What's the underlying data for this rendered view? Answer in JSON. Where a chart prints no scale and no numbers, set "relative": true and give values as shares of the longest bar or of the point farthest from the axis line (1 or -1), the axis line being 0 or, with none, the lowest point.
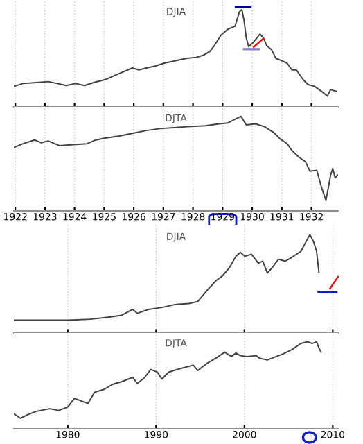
{
  "chart_data": [
    {
      "type": "line",
      "title": "DJIA",
      "relative": true,
      "tick_labels": false,
      "grid": "x",
      "xlim": [
        1921.95,
        1932.9
      ],
      "xticks": [
        1922,
        1923,
        1924,
        1925,
        1926,
        1927,
        1928,
        1929,
        1930,
        1931,
        1932
      ],
      "series": [
        {
          "color": "#404040",
          "x": [
            1921.95,
            1922.26,
            1922.72,
            1923.11,
            1923.42,
            1923.72,
            1924.03,
            1924.34,
            1924.65,
            1925.03,
            1925.49,
            1925.95,
            1926.18,
            1926.42,
            1926.72,
            1927.03,
            1927.49,
            1927.8,
            1928.11,
            1928.34,
            1928.57,
            1928.72,
            1928.95,
            1929.18,
            1929.42,
            1929.57,
            1929.65,
            1929.72,
            1929.8,
            1929.88,
            1930.03,
            1930.26,
            1930.38,
            1930.49,
            1930.65,
            1930.8,
            1931.03,
            1931.18,
            1931.34,
            1931.49,
            1931.72,
            1931.88,
            1932.11,
            1932.34,
            1932.54,
            1932.65,
            1932.72,
            1932.85
          ],
          "values": [
            0.21,
            0.24,
            0.25,
            0.26,
            0.24,
            0.22,
            0.24,
            0.22,
            0.25,
            0.28,
            0.34,
            0.4,
            0.38,
            0.4,
            0.42,
            0.45,
            0.48,
            0.5,
            0.51,
            0.53,
            0.57,
            0.63,
            0.74,
            0.8,
            0.83,
            0.98,
            1,
            0.9,
            0.71,
            0.62,
            0.66,
            0.75,
            0.71,
            0.63,
            0.59,
            0.5,
            0.47,
            0.45,
            0.38,
            0.38,
            0.28,
            0.23,
            0.21,
            0.16,
            0.11,
            0.18,
            0.17,
            0.16
          ]
        }
      ]
    },
    {
      "type": "line",
      "title": "DJTA",
      "relative": true,
      "tick_labels": "x",
      "grid": "x",
      "xlim": [
        1921.95,
        1932.9
      ],
      "xticks": [
        1922,
        1923,
        1924,
        1925,
        1926,
        1927,
        1928,
        1929,
        1930,
        1931,
        1932
      ],
      "series": [
        {
          "color": "#404040",
          "x": [
            1921.95,
            1922.26,
            1922.65,
            1922.88,
            1923.11,
            1923.49,
            1923.95,
            1924.42,
            1924.72,
            1925.03,
            1925.49,
            1925.95,
            1926.42,
            1926.88,
            1927.34,
            1927.8,
            1928.42,
            1928.88,
            1929.18,
            1929.49,
            1929.62,
            1929.8,
            1930.11,
            1930.42,
            1930.72,
            1930.95,
            1931.18,
            1931.34,
            1931.57,
            1931.8,
            1931.95,
            1932.18,
            1932.34,
            1932.49,
            1932.65,
            1932.72,
            1932.8,
            1932.88
          ],
          "values": [
            0.67,
            0.71,
            0.75,
            0.72,
            0.74,
            0.69,
            0.7,
            0.71,
            0.75,
            0.77,
            0.79,
            0.82,
            0.85,
            0.87,
            0.88,
            0.89,
            0.9,
            0.92,
            0.93,
            0.98,
            1,
            0.91,
            0.92,
            0.89,
            0.83,
            0.76,
            0.71,
            0.64,
            0.57,
            0.52,
            0.42,
            0.43,
            0.25,
            0.11,
            0.38,
            0.45,
            0.35,
            0.38
          ]
        }
      ]
    },
    {
      "type": "line",
      "title": "DJIA",
      "relative": true,
      "tick_labels": false,
      "grid": "x",
      "xlim": [
        1973.9,
        2010.6
      ],
      "xticks": [
        1980,
        1990,
        2000,
        2010
      ],
      "series": [
        {
          "color": "#404040",
          "x": [
            1973.91,
            1976.95,
            1980,
            1982.54,
            1984.57,
            1986.09,
            1987.36,
            1987.87,
            1989.14,
            1990.66,
            1992.18,
            1993.71,
            1994.72,
            1995.74,
            1996.75,
            1997.51,
            1998.27,
            1999.04,
            1999.54,
            2000.05,
            2000.81,
            2001.57,
            2002.08,
            2002.59,
            2003.1,
            2003.86,
            2004.62,
            2005.38,
            2006.4,
            2007.16,
            2007.41,
            2007.82,
            2008.17,
            2008.43
          ],
          "values": [
            0.13,
            0.13,
            0.13,
            0.14,
            0.16,
            0.18,
            0.24,
            0.2,
            0.24,
            0.26,
            0.29,
            0.3,
            0.32,
            0.43,
            0.53,
            0.58,
            0.66,
            0.78,
            0.82,
            0.78,
            0.8,
            0.71,
            0.73,
            0.61,
            0.66,
            0.75,
            0.73,
            0.77,
            0.83,
            0.96,
            1,
            0.93,
            0.83,
            0.62
          ]
        }
      ]
    },
    {
      "type": "line",
      "title": "DJTA",
      "relative": true,
      "tick_labels": "x",
      "grid": "x",
      "xlim": [
        1973.9,
        2010.6
      ],
      "xticks": [
        1980,
        1990,
        2000,
        2010
      ],
      "series": [
        {
          "color": "#404040",
          "x": [
            1973.91,
            1974.67,
            1975.43,
            1976.45,
            1977.97,
            1978.98,
            1980,
            1980.76,
            1981.52,
            1982.28,
            1983.05,
            1984.06,
            1985.08,
            1986.09,
            1987.36,
            1987.87,
            1988.63,
            1989.39,
            1990.15,
            1990.66,
            1991.42,
            1992.69,
            1994.21,
            1994.72,
            1995.74,
            1996.75,
            1997.77,
            1998.53,
            1999.04,
            1999.54,
            2000.3,
            2001.32,
            2001.73,
            2002.59,
            2003.35,
            2004.37,
            2005.38,
            2006.4,
            2007.16,
            2007.66,
            2008.17,
            2008.43,
            2008.68
          ],
          "values": [
            0.17,
            0.12,
            0.16,
            0.2,
            0.23,
            0.21,
            0.25,
            0.35,
            0.32,
            0.29,
            0.42,
            0.45,
            0.51,
            0.54,
            0.59,
            0.52,
            0.58,
            0.68,
            0.65,
            0.57,
            0.65,
            0.69,
            0.73,
            0.67,
            0.75,
            0.81,
            0.88,
            0.83,
            0.87,
            0.84,
            0.83,
            0.84,
            0.81,
            0.79,
            0.82,
            0.86,
            0.91,
            0.98,
            1,
            0.98,
            1,
            0.93,
            0.88
          ]
        }
      ]
    }
  ]
}
